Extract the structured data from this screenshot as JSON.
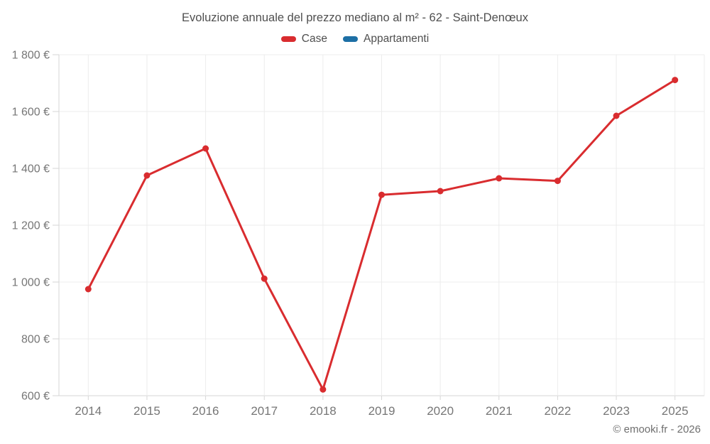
{
  "title": "Evoluzione annuale del prezzo mediano al m² - 62 - Saint-Denœux",
  "credit": "© emooki.fr - 2026",
  "legend": [
    {
      "label": "Case",
      "color": "#d92c2f"
    },
    {
      "label": "Appartamenti",
      "color": "#1d6fa5"
    }
  ],
  "chart_data": {
    "type": "line",
    "title": "Evoluzione annuale del prezzo mediano al m² - 62 - Saint-Denœux",
    "xlabel": "",
    "ylabel": "",
    "categories": [
      "2014",
      "2015",
      "2016",
      "2017",
      "2018",
      "2019",
      "2020",
      "2021",
      "2022",
      "2023",
      "2025"
    ],
    "series": [
      {
        "name": "Case",
        "color": "#d92c2f",
        "values": [
          975,
          1375,
          1470,
          1012,
          622,
          1307,
          1320,
          1365,
          1356,
          1585,
          1711
        ]
      },
      {
        "name": "Appartamenti",
        "color": "#1d6fa5",
        "values": []
      }
    ],
    "ylim": [
      600,
      1800
    ],
    "yticks": [
      {
        "value": 600,
        "label": "600 €"
      },
      {
        "value": 800,
        "label": "800 €"
      },
      {
        "value": 1000,
        "label": "1 000 €"
      },
      {
        "value": 1200,
        "label": "1 200 €"
      },
      {
        "value": 1400,
        "label": "1 400 €"
      },
      {
        "value": 1600,
        "label": "1 600 €"
      },
      {
        "value": 1800,
        "label": "1 800 €"
      }
    ],
    "grid": true,
    "legend_position": "top"
  }
}
